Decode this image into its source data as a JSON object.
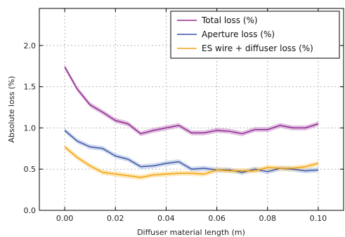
{
  "chart_data": {
    "type": "line",
    "title": "",
    "xlabel": "Diffuser material length (m)",
    "ylabel": "Absolute loss (%)",
    "xlim": [
      -0.01,
      0.11
    ],
    "ylim": [
      0.0,
      2.45
    ],
    "xticks": [
      0.0,
      0.02,
      0.04,
      0.06,
      0.08,
      0.1
    ],
    "xtick_labels": [
      "0.00",
      "0.02",
      "0.04",
      "0.06",
      "0.08",
      "0.10"
    ],
    "yticks": [
      0.0,
      0.5,
      1.0,
      1.5,
      2.0
    ],
    "ytick_labels": [
      "0.0",
      "0.5",
      "1.0",
      "1.5",
      "2.0"
    ],
    "grid": true,
    "legend_position": "top-right",
    "x": [
      0.0,
      0.005,
      0.01,
      0.015,
      0.02,
      0.025,
      0.03,
      0.035,
      0.04,
      0.045,
      0.05,
      0.055,
      0.06,
      0.065,
      0.07,
      0.075,
      0.08,
      0.085,
      0.09,
      0.095,
      0.1
    ],
    "series": [
      {
        "name": "Total loss (%)",
        "color": "#8e2a8e",
        "band_color": "#c98ac9",
        "values": [
          1.74,
          1.47,
          1.28,
          1.19,
          1.09,
          1.05,
          0.93,
          0.97,
          1.0,
          1.03,
          0.94,
          0.94,
          0.97,
          0.96,
          0.93,
          0.98,
          0.98,
          1.03,
          1.0,
          1.0,
          1.05
        ]
      },
      {
        "name": "Aperture loss (%)",
        "color": "#3b55a5",
        "band_color": "#a7b9e0",
        "values": [
          0.97,
          0.84,
          0.77,
          0.75,
          0.66,
          0.62,
          0.53,
          0.54,
          0.57,
          0.59,
          0.5,
          0.51,
          0.49,
          0.49,
          0.46,
          0.5,
          0.47,
          0.51,
          0.5,
          0.48,
          0.49
        ]
      },
      {
        "name": "ES wire + diffuser loss (%)",
        "color": "#f2a20e",
        "band_color": "#f9d27a",
        "values": [
          0.77,
          0.64,
          0.54,
          0.46,
          0.44,
          0.42,
          0.4,
          0.43,
          0.44,
          0.45,
          0.45,
          0.44,
          0.49,
          0.48,
          0.48,
          0.48,
          0.52,
          0.51,
          0.51,
          0.53,
          0.57
        ]
      }
    ]
  }
}
